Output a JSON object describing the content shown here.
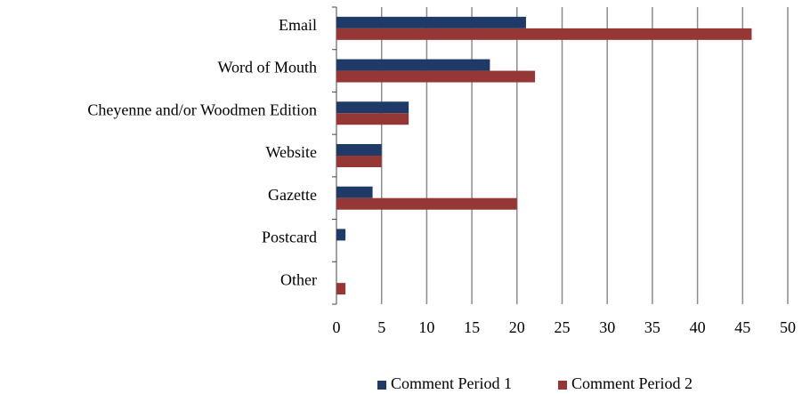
{
  "chart_data": {
    "type": "hbar",
    "categories": [
      "Email",
      "Word of Mouth",
      "Cheyenne and/or Woodmen Edition",
      "Website",
      "Gazette",
      "Postcard",
      "Other"
    ],
    "series": [
      {
        "name": "Comment Period 1",
        "color": "#1f3a66",
        "values": [
          21,
          17,
          8,
          5,
          4,
          1,
          0
        ]
      },
      {
        "name": "Comment Period 2",
        "color": "#953735",
        "values": [
          46,
          22,
          8,
          5,
          20,
          0,
          1
        ]
      }
    ],
    "xlim": [
      0,
      50
    ],
    "xticks": [
      0,
      5,
      10,
      15,
      20,
      25,
      30,
      35,
      40,
      45,
      50
    ],
    "grid": true,
    "legend": "bottom"
  }
}
